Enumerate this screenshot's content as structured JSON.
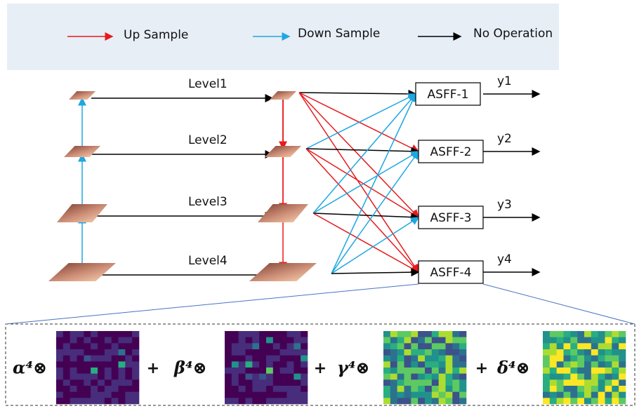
{
  "legend": {
    "items": [
      "Up Sample",
      "Down Sample",
      "No Operation"
    ]
  },
  "levels": [
    "Level1",
    "Level2",
    "Level3",
    "Level4"
  ],
  "asff": [
    "ASFF-1",
    "ASFF-2",
    "ASFF-3",
    "ASFF-4"
  ],
  "outputs": [
    "y1",
    "y2",
    "y3",
    "y4"
  ],
  "formula": {
    "terms": [
      "α⁴⊗",
      "β⁴⊗",
      "γ⁴⊗",
      "δ⁴⊗"
    ],
    "operators": [
      "+",
      "+",
      "+"
    ]
  }
}
